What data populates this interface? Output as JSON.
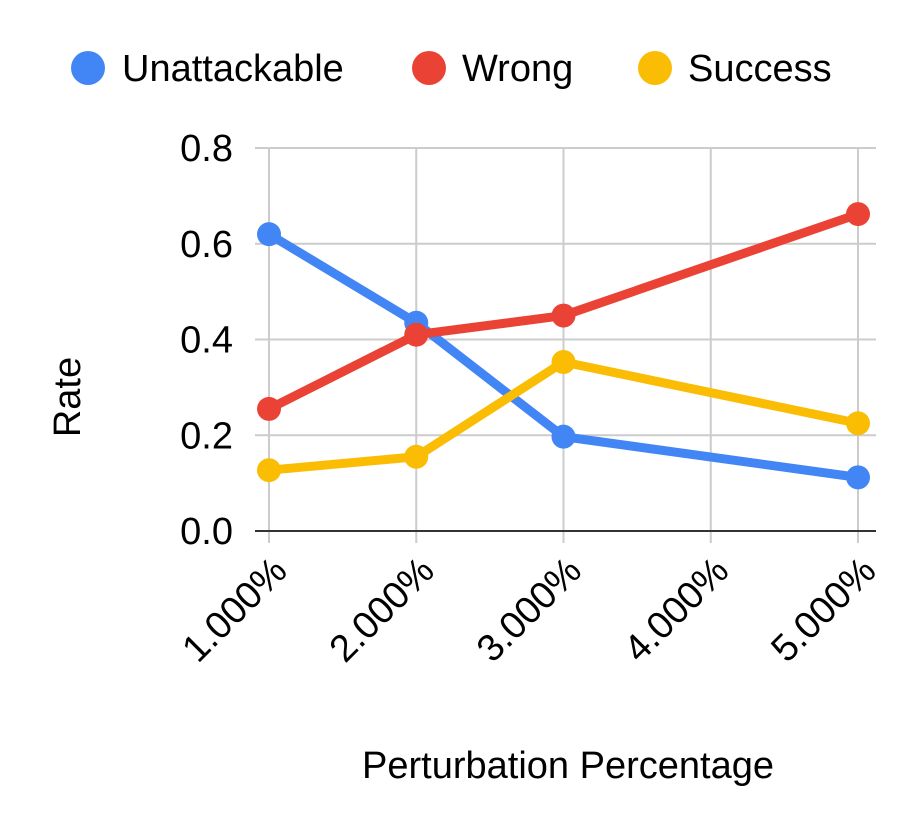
{
  "chart_data": {
    "type": "line",
    "xlabel": "Perturbation Percentage",
    "ylabel": "Rate",
    "categories": [
      "1.000%",
      "2.000%",
      "3.000%",
      "4.000%",
      "5.000%"
    ],
    "x": [
      1,
      2,
      3,
      4,
      5
    ],
    "ylim": [
      0,
      0.8
    ],
    "yticks": [
      "0.0",
      "0.2",
      "0.4",
      "0.6",
      "0.8"
    ],
    "grid": true,
    "legend_position": "top",
    "series": [
      {
        "name": "Unattackable",
        "color": "#4285F4",
        "points": [
          [
            1,
            0.62
          ],
          [
            2,
            0.435
          ],
          [
            3,
            0.197
          ],
          [
            5,
            0.112
          ]
        ]
      },
      {
        "name": "Wrong",
        "color": "#EA4335",
        "points": [
          [
            1,
            0.255
          ],
          [
            2,
            0.41
          ],
          [
            3,
            0.45
          ],
          [
            5,
            0.662
          ]
        ]
      },
      {
        "name": "Success",
        "color": "#FBBC04",
        "points": [
          [
            1,
            0.127
          ],
          [
            2,
            0.155
          ],
          [
            3,
            0.353
          ],
          [
            5,
            0.225
          ]
        ]
      }
    ]
  }
}
